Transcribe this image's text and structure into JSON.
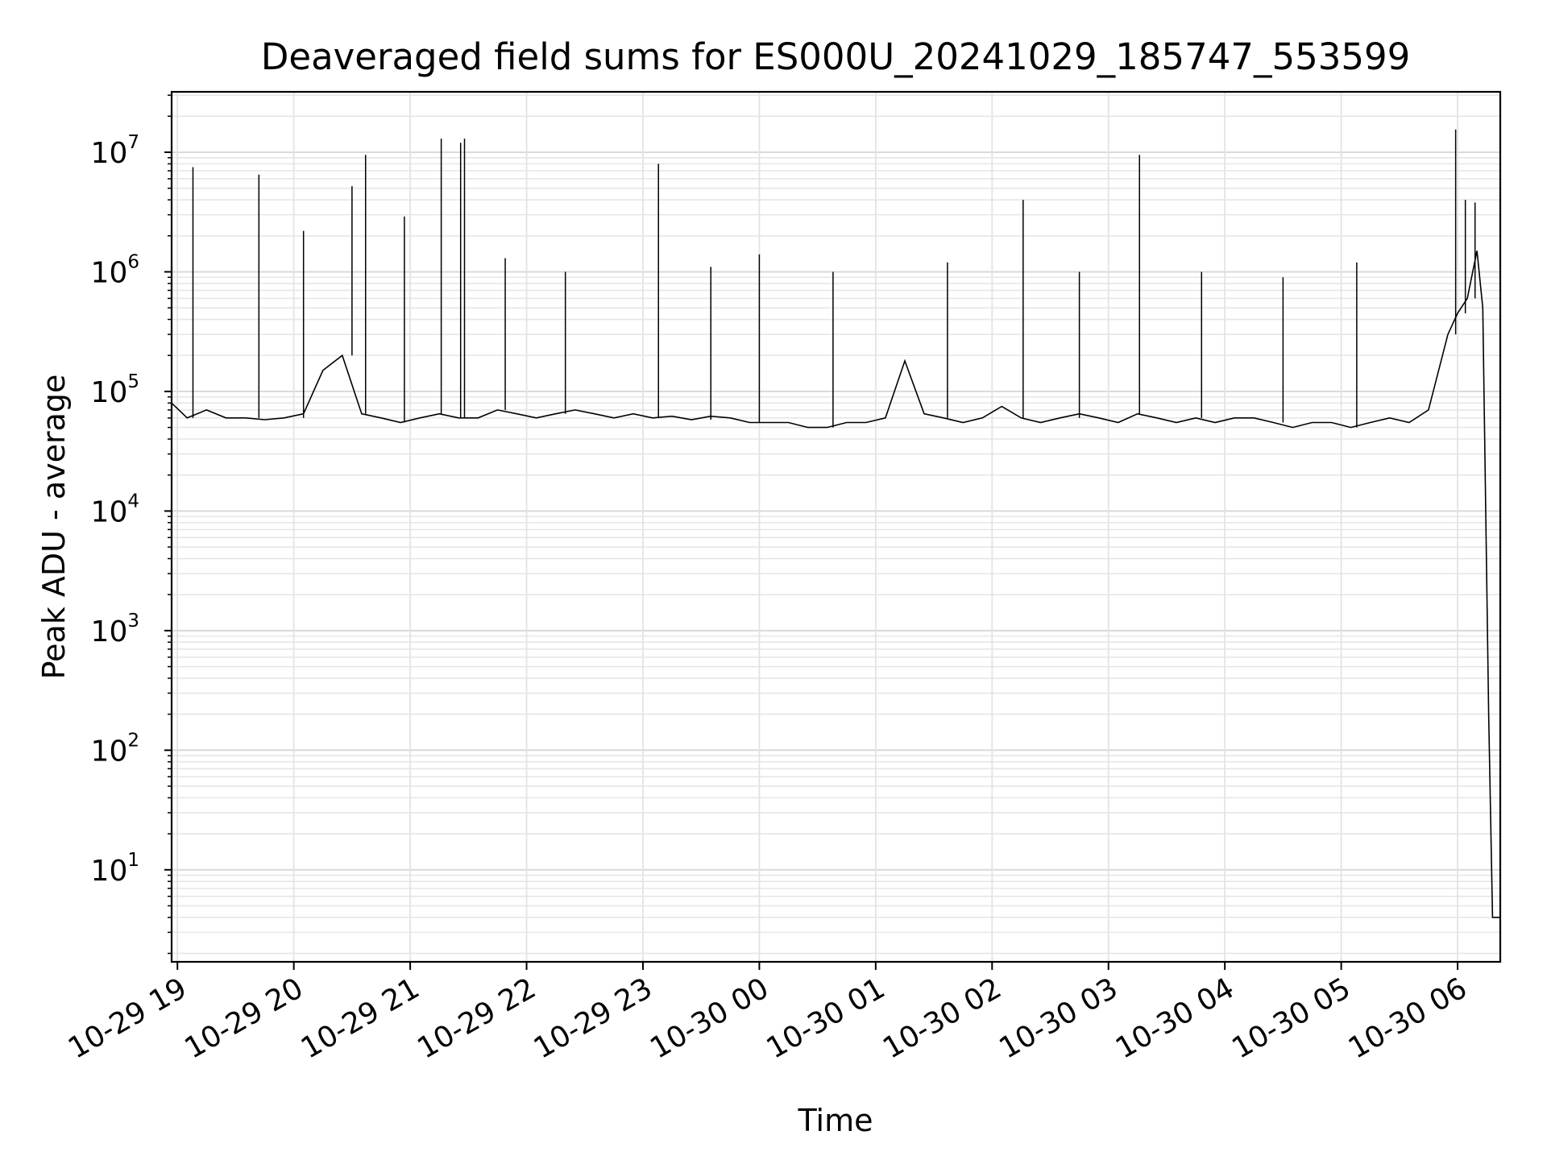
{
  "chart_data": {
    "type": "line",
    "title": "Deaveraged field sums for ES000U_20241029_185747_553599",
    "xlabel": "Time",
    "ylabel": "Peak ADU - average",
    "yscale": "log",
    "ylim": [
      1.7,
      32000000
    ],
    "xlim": [
      "2024-10-29 18:57",
      "2024-10-30 06:22"
    ],
    "grid": true,
    "line_color": "#000000",
    "x_tick_labels": [
      "10-29 19",
      "10-29 20",
      "10-29 21",
      "10-29 22",
      "10-29 23",
      "10-30 00",
      "10-30 01",
      "10-30 02",
      "10-30 03",
      "10-30 04",
      "10-30 05",
      "10-30 06"
    ],
    "y_tick_labels": [
      {
        "base": "10",
        "exp": "1"
      },
      {
        "base": "10",
        "exp": "2"
      },
      {
        "base": "10",
        "exp": "3"
      },
      {
        "base": "10",
        "exp": "4"
      },
      {
        "base": "10",
        "exp": "5"
      },
      {
        "base": "10",
        "exp": "6"
      },
      {
        "base": "10",
        "exp": "7"
      }
    ],
    "series": [
      {
        "x": [
          "2024-10-29 18:57",
          "2024-10-29 19:05",
          "2024-10-29 19:15",
          "2024-10-29 19:25",
          "2024-10-29 19:35",
          "2024-10-29 19:45",
          "2024-10-29 19:55",
          "2024-10-29 20:05",
          "2024-10-29 20:15",
          "2024-10-29 20:25",
          "2024-10-29 20:35",
          "2024-10-29 20:45",
          "2024-10-29 20:55",
          "2024-10-29 21:05",
          "2024-10-29 21:15",
          "2024-10-29 21:25",
          "2024-10-29 21:35",
          "2024-10-29 21:45",
          "2024-10-29 21:55",
          "2024-10-29 22:05",
          "2024-10-29 22:15",
          "2024-10-29 22:25",
          "2024-10-29 22:35",
          "2024-10-29 22:45",
          "2024-10-29 22:55",
          "2024-10-29 23:05",
          "2024-10-29 23:15",
          "2024-10-29 23:25",
          "2024-10-29 23:35",
          "2024-10-29 23:45",
          "2024-10-29 23:55",
          "2024-10-30 00:05",
          "2024-10-30 00:15",
          "2024-10-30 00:25",
          "2024-10-30 00:35",
          "2024-10-30 00:45",
          "2024-10-30 00:55",
          "2024-10-30 01:05",
          "2024-10-30 01:15",
          "2024-10-30 01:25",
          "2024-10-30 01:35",
          "2024-10-30 01:45",
          "2024-10-30 01:55",
          "2024-10-30 02:05",
          "2024-10-30 02:15",
          "2024-10-30 02:25",
          "2024-10-30 02:35",
          "2024-10-30 02:45",
          "2024-10-30 02:55",
          "2024-10-30 03:05",
          "2024-10-30 03:15",
          "2024-10-30 03:25",
          "2024-10-30 03:35",
          "2024-10-30 03:45",
          "2024-10-30 03:55",
          "2024-10-30 04:05",
          "2024-10-30 04:15",
          "2024-10-30 04:25",
          "2024-10-30 04:35",
          "2024-10-30 04:45",
          "2024-10-30 04:55",
          "2024-10-30 05:05",
          "2024-10-30 05:15",
          "2024-10-30 05:25",
          "2024-10-30 05:35",
          "2024-10-30 05:45",
          "2024-10-30 05:55",
          "2024-10-30 06:00",
          "2024-10-30 06:05",
          "2024-10-30 06:10",
          "2024-10-30 06:13",
          "2024-10-30 06:16",
          "2024-10-30 06:18",
          "2024-10-30 06:20",
          "2024-10-30 06:22"
        ],
        "y": [
          80000,
          60000,
          70000,
          60000,
          60000,
          58000,
          60000,
          65000,
          150000,
          200000,
          65000,
          60000,
          55000,
          60000,
          65000,
          60000,
          60000,
          70000,
          65000,
          60000,
          65000,
          70000,
          65000,
          60000,
          65000,
          60000,
          62000,
          58000,
          62000,
          60000,
          55000,
          55000,
          55000,
          50000,
          50000,
          55000,
          55000,
          60000,
          180000,
          65000,
          60000,
          55000,
          60000,
          75000,
          60000,
          55000,
          60000,
          65000,
          60000,
          55000,
          65000,
          60000,
          55000,
          60000,
          55000,
          60000,
          60000,
          55000,
          50000,
          55000,
          55000,
          50000,
          55000,
          60000,
          55000,
          70000,
          300000,
          450000,
          600000,
          1500000,
          500000,
          200,
          4,
          4,
          4
        ]
      }
    ],
    "spikes": [
      {
        "x": "2024-10-29 19:08",
        "y": 7500000
      },
      {
        "x": "2024-10-29 19:42",
        "y": 6500000
      },
      {
        "x": "2024-10-29 20:05",
        "y": 2200000
      },
      {
        "x": "2024-10-29 20:30",
        "y": 5200000
      },
      {
        "x": "2024-10-29 20:37",
        "y": 9500000
      },
      {
        "x": "2024-10-29 20:57",
        "y": 2900000
      },
      {
        "x": "2024-10-29 21:16",
        "y": 13000000
      },
      {
        "x": "2024-10-29 21:26",
        "y": 12000000
      },
      {
        "x": "2024-10-29 21:28",
        "y": 13000000
      },
      {
        "x": "2024-10-29 21:49",
        "y": 1300000
      },
      {
        "x": "2024-10-29 22:20",
        "y": 1000000
      },
      {
        "x": "2024-10-29 23:08",
        "y": 8000000
      },
      {
        "x": "2024-10-29 23:35",
        "y": 1100000
      },
      {
        "x": "2024-10-30 00:00",
        "y": 1400000
      },
      {
        "x": "2024-10-30 00:38",
        "y": 1000000
      },
      {
        "x": "2024-10-30 01:37",
        "y": 1200000
      },
      {
        "x": "2024-10-30 02:16",
        "y": 4000000
      },
      {
        "x": "2024-10-30 02:45",
        "y": 1000000
      },
      {
        "x": "2024-10-30 03:16",
        "y": 9500000
      },
      {
        "x": "2024-10-30 03:48",
        "y": 1000000
      },
      {
        "x": "2024-10-30 04:30",
        "y": 900000
      },
      {
        "x": "2024-10-30 05:08",
        "y": 1200000
      },
      {
        "x": "2024-10-30 05:59",
        "y": 15500000
      },
      {
        "x": "2024-10-30 06:04",
        "y": 4000000
      },
      {
        "x": "2024-10-30 06:09",
        "y": 3800000
      }
    ]
  }
}
